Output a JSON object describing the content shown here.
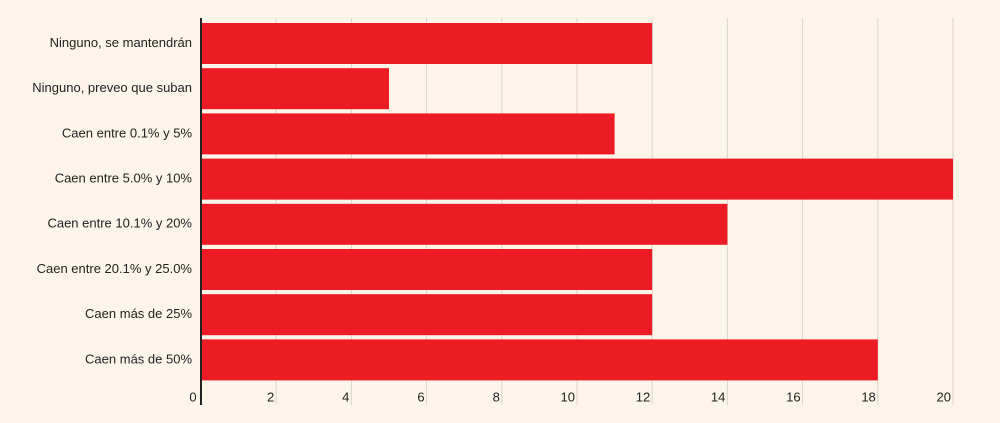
{
  "colors": {
    "background": "#fdf5e9",
    "bar": "#ed1c24",
    "gridline": "#d9d4cc",
    "axis": "#222222",
    "text": "#222222"
  },
  "chart_data": {
    "type": "bar",
    "orientation": "horizontal",
    "title": "",
    "xlabel": "",
    "ylabel": "",
    "categories": [
      "Ninguno, se mantendrán",
      "Ninguno, preveo que suban",
      "Caen entre 0.1% y 5%",
      "Caen entre 5.0% y 10%",
      "Caen entre 10.1% y 20%",
      "Caen entre 20.1% y 25.0%",
      "Caen más de 25%",
      "Caen más de 50%"
    ],
    "values": [
      12,
      5,
      11,
      20,
      14,
      12,
      12,
      18
    ],
    "xlim": [
      0,
      20
    ],
    "xticks": [
      0,
      2,
      4,
      6,
      8,
      10,
      12,
      14,
      16,
      18,
      20
    ],
    "grid": true,
    "legend": "none"
  }
}
